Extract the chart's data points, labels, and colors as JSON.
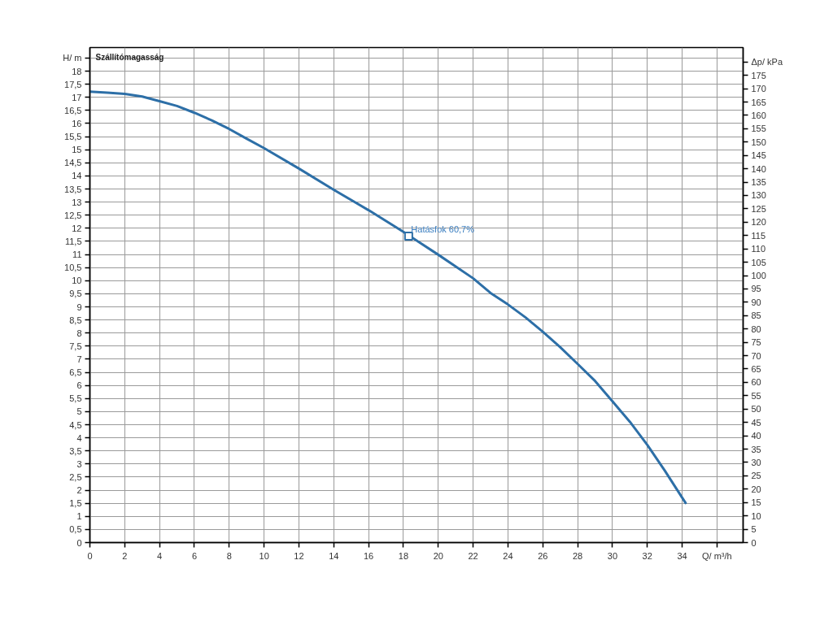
{
  "chart_data": {
    "type": "line",
    "title": "Szállítómagasság",
    "xlabel": "Q/ m³/h",
    "ylabel": "H/ m",
    "y2label": "Δp/ kPa",
    "series": [
      {
        "color": "#2d6fa7",
        "x": [
          0,
          1,
          2,
          3,
          4,
          5,
          6,
          7,
          8,
          9,
          10,
          12,
          14,
          16,
          18,
          20,
          22,
          23,
          24,
          25,
          26,
          27,
          28,
          29,
          30,
          31,
          32,
          33,
          34.2
        ],
        "values": [
          17.22,
          17.18,
          17.13,
          17.03,
          16.85,
          16.67,
          16.41,
          16.12,
          15.79,
          15.42,
          15.06,
          14.28,
          13.47,
          12.69,
          11.86,
          10.99,
          10.09,
          9.53,
          9.09,
          8.6,
          8.05,
          7.46,
          6.82,
          6.17,
          5.39,
          4.61,
          3.73,
          2.75,
          1.51
        ]
      },
      {
        "type": "scatter",
        "marker": "square",
        "color": "#2d6fa7",
        "x": [
          18.3
        ],
        "values": [
          11.7
        ]
      }
    ],
    "annotations": [
      {
        "text": "Hatásfok 60,7%",
        "x": 18.3,
        "y": 11.7
      }
    ],
    "xlim": [
      0,
      37.5
    ],
    "xticks": [
      0,
      2,
      4,
      6,
      8,
      10,
      12,
      14,
      16,
      18,
      20,
      22,
      24,
      26,
      28,
      30,
      32,
      34,
      {
        "value": 36,
        "label": null
      }
    ],
    "ylim": [
      0,
      18.9
    ],
    "yticks": [
      0,
      {
        "value": 0.5,
        "label": "0,5"
      },
      1,
      {
        "value": 1.5,
        "label": "1,5"
      },
      2,
      {
        "value": 2.5,
        "label": "2,5"
      },
      3,
      {
        "value": 3.5,
        "label": "3,5"
      },
      4,
      {
        "value": 4.5,
        "label": "4,5"
      },
      5,
      {
        "value": 5.5,
        "label": "5,5"
      },
      6,
      {
        "value": 6.5,
        "label": "6,5"
      },
      7,
      {
        "value": 7.5,
        "label": "7,5"
      },
      8,
      {
        "value": 8.5,
        "label": "8,5"
      },
      9,
      {
        "value": 9.5,
        "label": "9,5"
      },
      10,
      {
        "value": 10.5,
        "label": "10,5"
      },
      11,
      {
        "value": 11.5,
        "label": "11,5"
      },
      12,
      {
        "value": 12.5,
        "label": "12,5"
      },
      13,
      {
        "value": 13.5,
        "label": "13,5"
      },
      14,
      {
        "value": 14.5,
        "label": "14,5"
      },
      15,
      {
        "value": 15.5,
        "label": "15,5"
      },
      16,
      {
        "value": 16.5,
        "label": "16,5"
      },
      17,
      {
        "value": 17.5,
        "label": "17,5"
      },
      18,
      {
        "value": 18.5,
        "label": null
      }
    ],
    "y2lim": [
      0,
      185.4
    ],
    "y2ticks": [
      0,
      5,
      10,
      15,
      20,
      25,
      30,
      35,
      40,
      45,
      50,
      55,
      60,
      65,
      70,
      75,
      80,
      85,
      90,
      95,
      100,
      105,
      110,
      115,
      120,
      125,
      130,
      135,
      140,
      145,
      150,
      155,
      160,
      165,
      170,
      175,
      {
        "value": 180,
        "label": null
      }
    ],
    "grid": true
  }
}
